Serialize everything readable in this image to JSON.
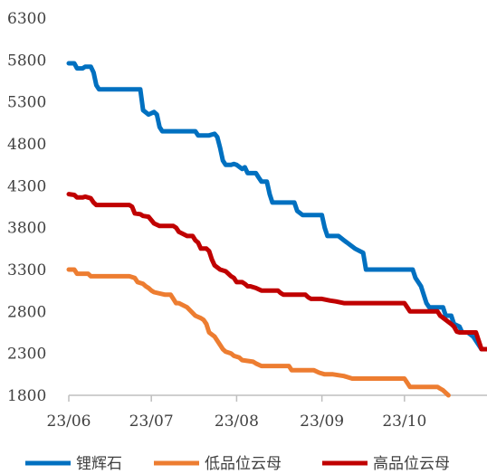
{
  "chart_data": {
    "type": "line",
    "title": "",
    "xlabel": "",
    "ylabel": "",
    "ylim": [
      1800,
      6300
    ],
    "y_ticks": [
      1800,
      2300,
      2800,
      3300,
      3800,
      4300,
      4800,
      5300,
      5800,
      6300
    ],
    "x_range": [
      0,
      152
    ],
    "x_ticks": [
      {
        "label": "23/06",
        "x": 0
      },
      {
        "label": "23/07",
        "x": 30
      },
      {
        "label": "23/08",
        "x": 61
      },
      {
        "label": "23/09",
        "x": 92
      },
      {
        "label": "23/10",
        "x": 122
      }
    ],
    "grid": false,
    "legend_position": "bottom",
    "series": [
      {
        "name": "锂辉石",
        "color": "#0070C0",
        "points": [
          [
            0,
            5760
          ],
          [
            2,
            5760
          ],
          [
            3,
            5700
          ],
          [
            5,
            5700
          ],
          [
            6,
            5720
          ],
          [
            8,
            5720
          ],
          [
            9,
            5650
          ],
          [
            10,
            5500
          ],
          [
            11,
            5450
          ],
          [
            20,
            5450
          ],
          [
            25,
            5450
          ],
          [
            26,
            5450
          ],
          [
            27,
            5200
          ],
          [
            29,
            5150
          ],
          [
            31,
            5180
          ],
          [
            32,
            5150
          ],
          [
            33,
            5000
          ],
          [
            34,
            4950
          ],
          [
            38,
            4950
          ],
          [
            45,
            4950
          ],
          [
            46,
            4950
          ],
          [
            47,
            4900
          ],
          [
            51,
            4900
          ],
          [
            53,
            4920
          ],
          [
            54,
            4880
          ],
          [
            55,
            4750
          ],
          [
            56,
            4600
          ],
          [
            57,
            4550
          ],
          [
            59,
            4550
          ],
          [
            60,
            4560
          ],
          [
            61,
            4550
          ],
          [
            63,
            4500
          ],
          [
            64,
            4520
          ],
          [
            65,
            4450
          ],
          [
            68,
            4450
          ],
          [
            69,
            4400
          ],
          [
            70,
            4350
          ],
          [
            72,
            4350
          ],
          [
            73,
            4200
          ],
          [
            74,
            4100
          ],
          [
            80,
            4100
          ],
          [
            82,
            4100
          ],
          [
            83,
            4000
          ],
          [
            85,
            3950
          ],
          [
            89,
            3950
          ],
          [
            91,
            3950
          ],
          [
            92,
            3950
          ],
          [
            93,
            3800
          ],
          [
            94,
            3700
          ],
          [
            96,
            3700
          ],
          [
            98,
            3700
          ],
          [
            100,
            3650
          ],
          [
            104,
            3550
          ],
          [
            107,
            3500
          ],
          [
            108,
            3300
          ],
          [
            110,
            3300
          ],
          [
            120,
            3300
          ],
          [
            125,
            3300
          ],
          [
            126,
            3200
          ],
          [
            128,
            3100
          ],
          [
            130,
            2900
          ],
          [
            131,
            2850
          ],
          [
            133,
            2850
          ],
          [
            135,
            2850
          ],
          [
            136,
            2850
          ],
          [
            137,
            2750
          ],
          [
            139,
            2750
          ],
          [
            140,
            2650
          ],
          [
            142,
            2620
          ],
          [
            143,
            2550
          ],
          [
            145,
            2550
          ],
          [
            147,
            2500
          ],
          [
            149,
            2400
          ],
          [
            150,
            2350
          ],
          [
            152,
            2350
          ]
        ]
      },
      {
        "name": "低品位云母",
        "color": "#ED7D31",
        "points": [
          [
            0,
            3300
          ],
          [
            2,
            3300
          ],
          [
            3,
            3250
          ],
          [
            7,
            3250
          ],
          [
            8,
            3220
          ],
          [
            15,
            3220
          ],
          [
            20,
            3220
          ],
          [
            22,
            3220
          ],
          [
            24,
            3200
          ],
          [
            25,
            3150
          ],
          [
            27,
            3130
          ],
          [
            28,
            3100
          ],
          [
            29,
            3080
          ],
          [
            30,
            3050
          ],
          [
            31,
            3030
          ],
          [
            35,
            3000
          ],
          [
            36,
            3000
          ],
          [
            37,
            3000
          ],
          [
            38,
            2950
          ],
          [
            39,
            2900
          ],
          [
            40,
            2900
          ],
          [
            43,
            2850
          ],
          [
            46,
            2750
          ],
          [
            48,
            2720
          ],
          [
            49,
            2700
          ],
          [
            50,
            2650
          ],
          [
            51,
            2550
          ],
          [
            53,
            2500
          ],
          [
            55,
            2400
          ],
          [
            56,
            2350
          ],
          [
            57,
            2320
          ],
          [
            59,
            2300
          ],
          [
            60,
            2270
          ],
          [
            62,
            2250
          ],
          [
            63,
            2220
          ],
          [
            65,
            2210
          ],
          [
            67,
            2200
          ],
          [
            68,
            2180
          ],
          [
            70,
            2150
          ],
          [
            77,
            2150
          ],
          [
            79,
            2150
          ],
          [
            80,
            2150
          ],
          [
            81,
            2100
          ],
          [
            87,
            2100
          ],
          [
            88,
            2100
          ],
          [
            89,
            2100
          ],
          [
            91,
            2070
          ],
          [
            93,
            2050
          ],
          [
            96,
            2050
          ],
          [
            100,
            2030
          ],
          [
            103,
            2000
          ],
          [
            108,
            2000
          ],
          [
            120,
            2000
          ],
          [
            122,
            2000
          ],
          [
            123,
            1950
          ],
          [
            124,
            1900
          ],
          [
            128,
            1900
          ],
          [
            130,
            1900
          ],
          [
            132,
            1900
          ],
          [
            133,
            1900
          ],
          [
            134,
            1900
          ],
          [
            135,
            1880
          ],
          [
            136,
            1860
          ],
          [
            137,
            1830
          ],
          [
            138,
            1800
          ]
        ]
      },
      {
        "name": "高品位云母",
        "color": "#C00000",
        "points": [
          [
            0,
            4200
          ],
          [
            2,
            4190
          ],
          [
            3,
            4160
          ],
          [
            5,
            4160
          ],
          [
            6,
            4170
          ],
          [
            7,
            4160
          ],
          [
            8,
            4150
          ],
          [
            9,
            4100
          ],
          [
            10,
            4070
          ],
          [
            15,
            4070
          ],
          [
            22,
            4070
          ],
          [
            23,
            4050
          ],
          [
            24,
            3970
          ],
          [
            26,
            3960
          ],
          [
            27,
            3940
          ],
          [
            29,
            3930
          ],
          [
            31,
            3850
          ],
          [
            33,
            3820
          ],
          [
            38,
            3820
          ],
          [
            39,
            3800
          ],
          [
            40,
            3750
          ],
          [
            43,
            3700
          ],
          [
            45,
            3700
          ],
          [
            46,
            3650
          ],
          [
            47,
            3620
          ],
          [
            48,
            3550
          ],
          [
            50,
            3550
          ],
          [
            51,
            3520
          ],
          [
            52,
            3420
          ],
          [
            53,
            3350
          ],
          [
            55,
            3300
          ],
          [
            57,
            3280
          ],
          [
            58,
            3250
          ],
          [
            59,
            3220
          ],
          [
            60,
            3200
          ],
          [
            61,
            3150
          ],
          [
            63,
            3150
          ],
          [
            64,
            3130
          ],
          [
            65,
            3100
          ],
          [
            66,
            3100
          ],
          [
            68,
            3080
          ],
          [
            70,
            3050
          ],
          [
            72,
            3050
          ],
          [
            75,
            3050
          ],
          [
            76,
            3050
          ],
          [
            77,
            3020
          ],
          [
            78,
            3000
          ],
          [
            84,
            3000
          ],
          [
            86,
            3000
          ],
          [
            87,
            2970
          ],
          [
            88,
            2950
          ],
          [
            92,
            2950
          ],
          [
            95,
            2930
          ],
          [
            97,
            2920
          ],
          [
            100,
            2900
          ],
          [
            110,
            2900
          ],
          [
            120,
            2900
          ],
          [
            122,
            2900
          ],
          [
            123,
            2850
          ],
          [
            124,
            2800
          ],
          [
            128,
            2800
          ],
          [
            132,
            2800
          ],
          [
            133,
            2800
          ],
          [
            134,
            2800
          ],
          [
            135,
            2750
          ],
          [
            137,
            2700
          ],
          [
            139,
            2650
          ],
          [
            140,
            2620
          ],
          [
            141,
            2560
          ],
          [
            142,
            2550
          ],
          [
            145,
            2550
          ],
          [
            148,
            2550
          ],
          [
            149,
            2450
          ],
          [
            150,
            2350
          ],
          [
            152,
            2350
          ]
        ]
      }
    ]
  }
}
